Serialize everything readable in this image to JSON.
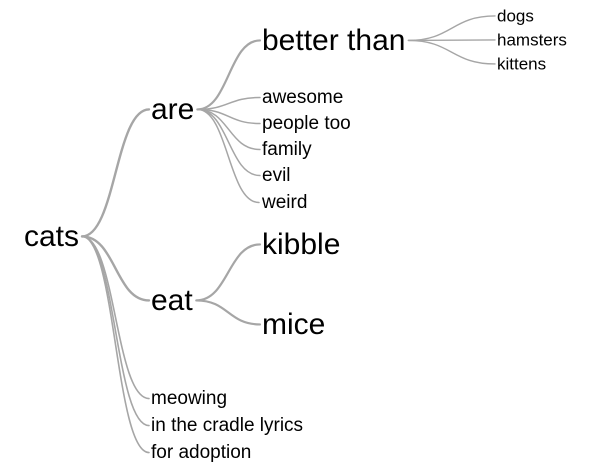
{
  "word_tree": {
    "link_color": "#a6a6a6",
    "text_color": "#000000",
    "root": "cats",
    "branches": [
      {
        "word": "are",
        "children": [
          {
            "word": "better than",
            "children": [
              {
                "word": "dogs"
              },
              {
                "word": "hamsters"
              },
              {
                "word": "kittens"
              }
            ]
          },
          {
            "word": "awesome"
          },
          {
            "word": "people too"
          },
          {
            "word": "family"
          },
          {
            "word": "evil"
          },
          {
            "word": "weird"
          }
        ]
      },
      {
        "word": "eat",
        "children": [
          {
            "word": "kibble"
          },
          {
            "word": "mice"
          }
        ]
      },
      {
        "word": "meowing"
      },
      {
        "word": "in the cradle lyrics"
      },
      {
        "word": "for adoption"
      }
    ]
  }
}
